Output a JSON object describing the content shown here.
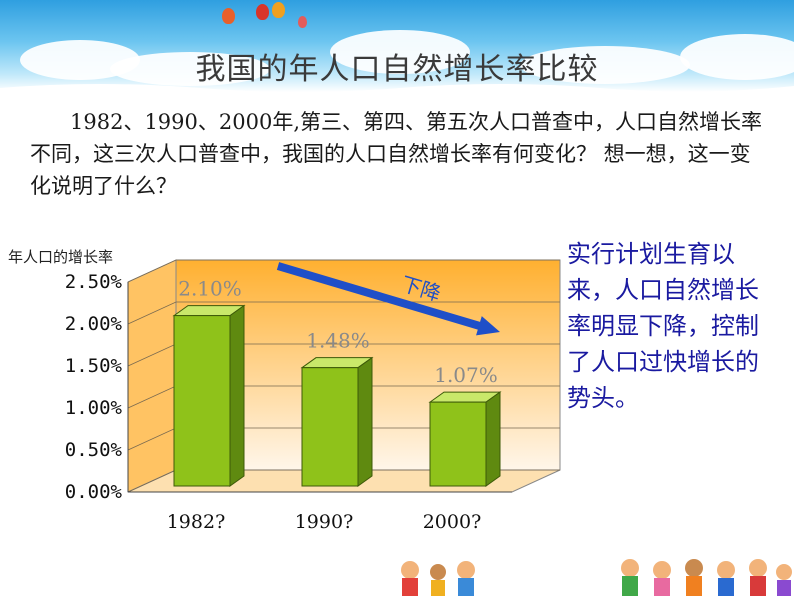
{
  "slide": {
    "title": "我国的年人口自然增长率比较",
    "question": "1982、1990、2000年,第三、第四、第五次人口普查中，人口自然增长率不同，这三次人口普查中，我国的人口自然增长率有何变化？ 想一想，这一变化说明了什么？",
    "note": "实行计划生育以来，人口自然增长率明显下降，控制了人口过快增长的势头。"
  },
  "chart_data": {
    "type": "bar",
    "categories": [
      "1982?",
      "1990?",
      "2000?"
    ],
    "values": [
      2.1,
      1.48,
      1.07
    ],
    "value_labels": [
      "2.10%",
      "1.48%",
      "1.07%"
    ],
    "ylabel": "年人口的增长率",
    "yticks": [
      "0.00%",
      "0.50%",
      "1.00%",
      "1.50%",
      "2.00%",
      "2.50%"
    ],
    "ylim": [
      0,
      2.5
    ],
    "arrow_label": "下降",
    "grid": true,
    "colors": {
      "bar": "#8fc21a",
      "bar_top": "#c9e86a",
      "bar_side": "#5f8a10",
      "wall_top": "#ffb030",
      "wall_bottom": "#fff6ea",
      "arrow": "#1f4fc8"
    }
  }
}
